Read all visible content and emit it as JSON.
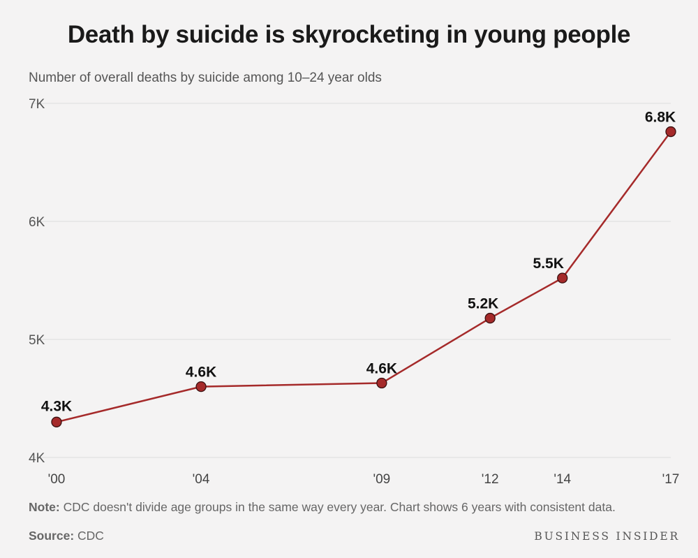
{
  "header": {
    "title": "Death by suicide is skyrocketing in young people",
    "subtitle": "Number of overall deaths by suicide among 10–24 year olds"
  },
  "chart_data": {
    "type": "line",
    "title": "Death by suicide is skyrocketing in young people",
    "subtitle": "Number of overall deaths by suicide among 10–24 year olds",
    "xlabel": "",
    "ylabel": "",
    "x": [
      2000,
      2004,
      2009,
      2012,
      2014,
      2017
    ],
    "x_tick_labels": [
      "'00",
      "'04",
      "'09",
      "'12",
      "'14",
      "'17"
    ],
    "xlim": [
      2000,
      2017
    ],
    "ylim": [
      4000,
      7000
    ],
    "y_ticks": [
      4000,
      5000,
      6000,
      7000
    ],
    "y_tick_labels": [
      "4K",
      "5K",
      "6K",
      "7K"
    ],
    "grid": true,
    "series": [
      {
        "values": [
          4300,
          4600,
          4630,
          5180,
          5520,
          6760
        ],
        "data_labels": [
          "4.3K",
          "4.6K",
          "4.6K",
          "5.2K",
          "5.5K",
          "6.8K"
        ],
        "color": "#a52a2a"
      }
    ]
  },
  "footer": {
    "note_label": "Note:",
    "note_text": " CDC doesn't divide age groups in the same way every year. Chart shows 6 years with consistent data.",
    "source_label": "Source:",
    "source_text": " CDC",
    "brand": "BUSINESS INSIDER"
  }
}
